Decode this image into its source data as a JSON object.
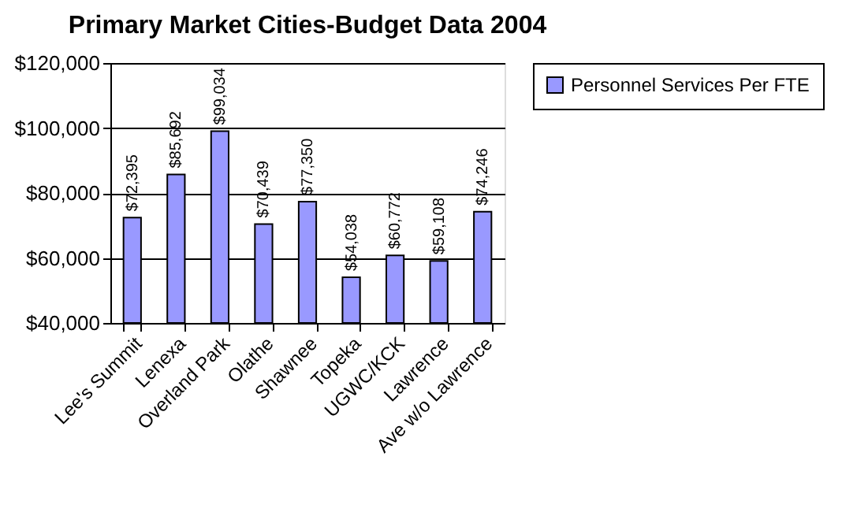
{
  "chart_data": {
    "type": "bar",
    "title": "Primary Market Cities-Budget Data 2004",
    "categories": [
      "Lee's Summit",
      "Lenexa",
      "Overland Park",
      "Olathe",
      "Shawnee",
      "Topeka",
      "UGWC/KCK",
      "Lawrence",
      "Ave w/o Lawrence"
    ],
    "series": [
      {
        "name": "Personnel Services Per FTE",
        "color": "#9999ff",
        "values": [
          72395,
          85692,
          99034,
          70439,
          77350,
          54038,
          60772,
          59108,
          74246
        ]
      }
    ],
    "ylim": [
      40000,
      120000
    ],
    "yticks": [
      {
        "value": 40000,
        "label": "$40,000"
      },
      {
        "value": 60000,
        "label": "$60,000"
      },
      {
        "value": 80000,
        "label": "$80,000"
      },
      {
        "value": 100000,
        "label": "$100,000"
      },
      {
        "value": 120000,
        "label": "$120,000"
      }
    ],
    "value_labels": [
      "$72,395",
      "$85,692",
      "$99,034",
      "$70,439",
      "$77,350",
      "$54,038",
      "$60,772",
      "$59,108",
      "$74,246"
    ],
    "grid": "y",
    "legend": "right"
  }
}
